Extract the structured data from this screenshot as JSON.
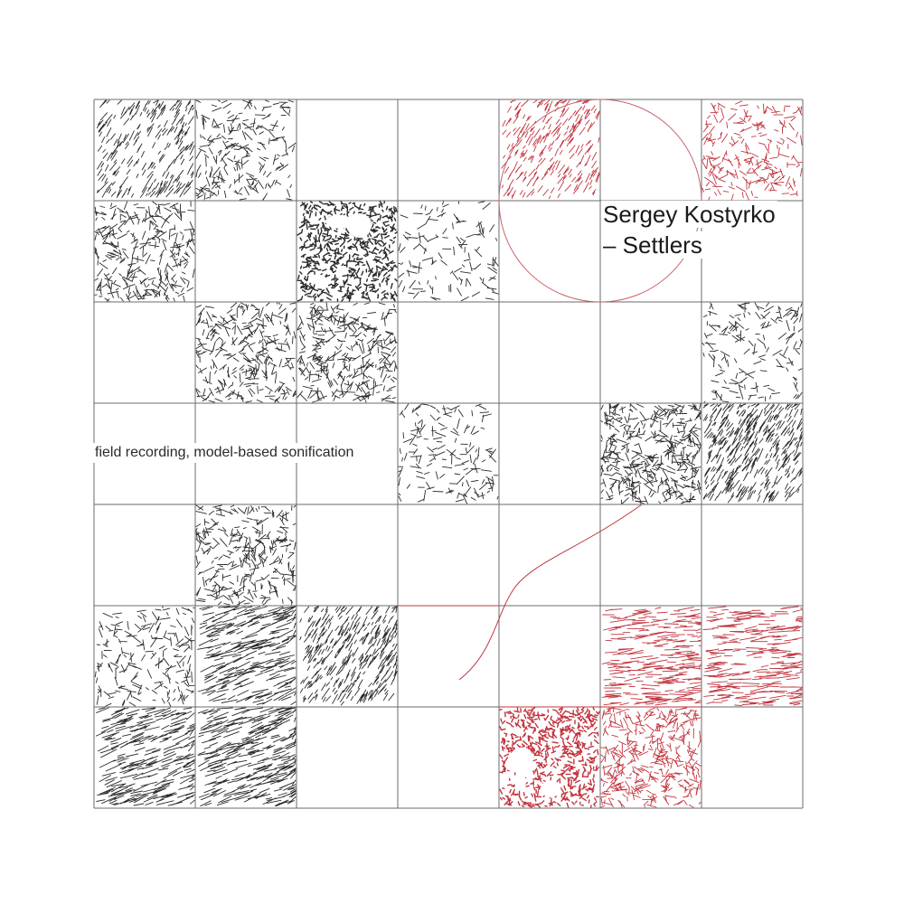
{
  "artist": "Sergey Kostyrko",
  "title": "– Settlers",
  "subtitle": "field recording, model-based sonification",
  "colors": {
    "background": "#ffffff",
    "grid": "#6b6b6b",
    "ink_dark": "#2b2b2b",
    "ink_red": "#c0353f",
    "circle": "#c9626a"
  },
  "grid": {
    "columns": 7,
    "rows": 7,
    "dark_tiles": [
      {
        "col": 0,
        "row": 0,
        "density": 0.35,
        "style": "diagonal"
      },
      {
        "col": 1,
        "row": 0,
        "density": 0.3,
        "style": "mixed"
      },
      {
        "col": 0,
        "row": 1,
        "density": 0.45,
        "style": "mixed"
      },
      {
        "col": 2,
        "row": 1,
        "density": 1.0,
        "style": "dense"
      },
      {
        "col": 3,
        "row": 1,
        "density": 0.12,
        "style": "sparse"
      },
      {
        "col": 1,
        "row": 2,
        "density": 0.45,
        "style": "mixed"
      },
      {
        "col": 2,
        "row": 2,
        "density": 0.5,
        "style": "mixed"
      },
      {
        "col": 6,
        "row": 2,
        "density": 0.2,
        "style": "sparse"
      },
      {
        "col": 3,
        "row": 3,
        "density": 0.18,
        "style": "sparse"
      },
      {
        "col": 5,
        "row": 3,
        "density": 0.7,
        "style": "mixed"
      },
      {
        "col": 6,
        "row": 3,
        "density": 0.65,
        "style": "diagonal"
      },
      {
        "col": 1,
        "row": 4,
        "density": 0.45,
        "style": "mixed"
      },
      {
        "col": 0,
        "row": 5,
        "density": 0.25,
        "style": "sparse"
      },
      {
        "col": 1,
        "row": 5,
        "density": 0.35,
        "style": "hatched"
      },
      {
        "col": 2,
        "row": 5,
        "density": 0.55,
        "style": "diagonal"
      },
      {
        "col": 0,
        "row": 6,
        "density": 0.35,
        "style": "hatched"
      },
      {
        "col": 1,
        "row": 6,
        "density": 0.4,
        "style": "hatched"
      }
    ],
    "red_tiles": [
      {
        "col": 4,
        "row": 0,
        "density": 0.35,
        "style": "diagonal"
      },
      {
        "col": 6,
        "row": 0,
        "density": 0.3,
        "style": "sparse"
      },
      {
        "col": 5,
        "row": 5,
        "density": 0.35,
        "style": "horizontal"
      },
      {
        "col": 6,
        "row": 5,
        "density": 0.35,
        "style": "horizontal"
      },
      {
        "col": 4,
        "row": 6,
        "density": 1.0,
        "style": "dense"
      },
      {
        "col": 5,
        "row": 6,
        "density": 0.6,
        "style": "mixed"
      }
    ]
  },
  "marks": {
    "circle": {
      "col": 5,
      "row": 1
    },
    "path_start": {
      "col": 4,
      "row": 6
    },
    "path_end": {
      "col": 5,
      "row": 4
    }
  }
}
